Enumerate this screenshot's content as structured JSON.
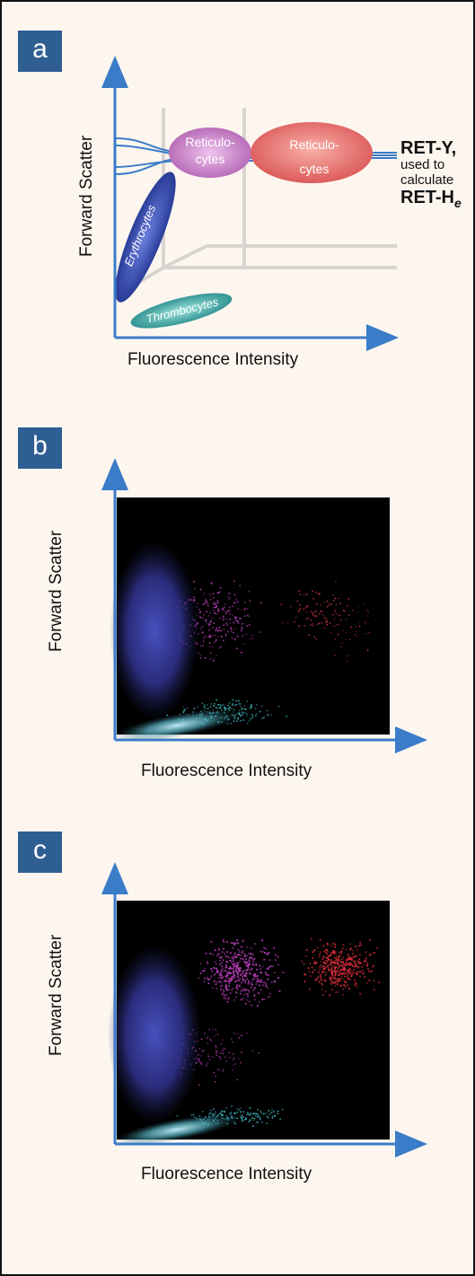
{
  "panels": [
    {
      "label": "a",
      "ylabel": "Forward Scatter",
      "xlabel": "Fluorescence Intensity"
    },
    {
      "label": "b",
      "ylabel": "Forward Scatter",
      "xlabel": "Fluorescence Intensity"
    },
    {
      "label": "c",
      "ylabel": "Forward Scatter",
      "xlabel": "Fluorescence Intensity"
    }
  ],
  "diagram": {
    "populations": {
      "reticulocytes_1": [
        "Reticulo-",
        "cytes"
      ],
      "reticulocytes_2": [
        "Reticulo-",
        "cytes"
      ],
      "erythrocytes": "Erythrocytes",
      "thrombocytes": "Thrombocytes"
    },
    "annotation": {
      "line1": "RET-Y,",
      "line2": "used to",
      "line3": "calculate",
      "line4_main": "RET-H",
      "line4_sub": "e"
    }
  },
  "colors": {
    "accent": "#2f5e92",
    "axis": "#3a7cc8",
    "erythrocytes": "#3b4fb0",
    "reticulocytes_low": "#c878c8",
    "reticulocytes_high": "#e86a6a",
    "thrombocytes": "#3aa8a8",
    "scatter_bg": "#000000"
  }
}
